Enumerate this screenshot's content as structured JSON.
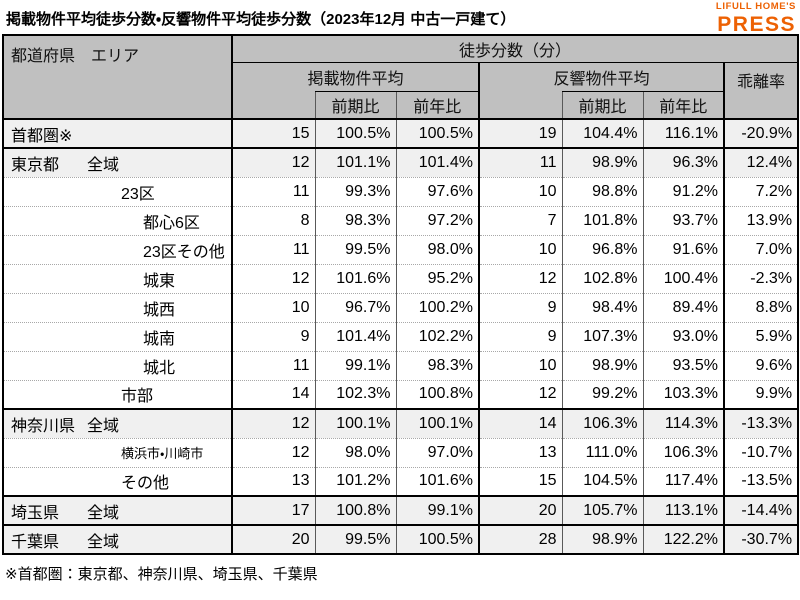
{
  "title": "掲載物件平均徒歩分数・反響物件平均徒歩分数（2023年12月 中古一戸建て）",
  "logo": {
    "line1": "LIFULL HOME'S",
    "line2": "PRESS",
    "color": "#ed6103"
  },
  "table": {
    "corner_header": "都道府県　エリア",
    "top_header": "徒歩分数（分）",
    "group_listed": "掲載物件平均",
    "group_response": "反響物件平均",
    "group_divergence": "乖離率",
    "sub_prev_period": "前期比",
    "sub_prev_year": "前年比",
    "col_keys": [
      "listed-avg",
      "listed-prev-period",
      "listed-prev-year",
      "response-avg",
      "response-prev-period",
      "response-prev-year",
      "divergence-rate"
    ]
  },
  "colors": {
    "header_bg": "#c0c0c0",
    "shade_row_bg": "#f0f0f0",
    "border": "#000000",
    "logo_orange": "#ed6103"
  },
  "chart_data": {
    "type": "table",
    "title": "掲載物件平均徒歩分数・反響物件平均徒歩分数（2023年12月 中古一戸建て）",
    "columns": [
      "都道府県 エリア",
      "掲載物件平均 徒歩分数（分）",
      "掲載 前期比",
      "掲載 前年比",
      "反響物件平均 徒歩分数（分）",
      "反響 前期比",
      "反響 前年比",
      "乖離率"
    ],
    "rows": [
      {
        "pref": "首都圏※",
        "area": "",
        "indent": 0,
        "shade": true,
        "group_start": false,
        "small": false,
        "values": [
          "15",
          "100.5%",
          "100.5%",
          "19",
          "104.4%",
          "116.1%",
          "-20.9%"
        ]
      },
      {
        "pref": "東京都",
        "area": "全域",
        "indent": 1,
        "shade": true,
        "group_start": true,
        "small": false,
        "values": [
          "12",
          "101.1%",
          "101.4%",
          "11",
          "98.9%",
          "96.3%",
          "12.4%"
        ]
      },
      {
        "pref": "",
        "area": "23区",
        "indent": 2,
        "shade": false,
        "group_start": false,
        "small": false,
        "values": [
          "11",
          "99.3%",
          "97.6%",
          "10",
          "98.8%",
          "91.2%",
          "7.2%"
        ]
      },
      {
        "pref": "",
        "area": "都心6区",
        "indent": 3,
        "shade": false,
        "group_start": false,
        "small": false,
        "values": [
          "8",
          "98.3%",
          "97.2%",
          "7",
          "101.8%",
          "93.7%",
          "13.9%"
        ]
      },
      {
        "pref": "",
        "area": "23区その他",
        "indent": 3,
        "shade": false,
        "group_start": false,
        "small": false,
        "values": [
          "11",
          "99.5%",
          "98.0%",
          "10",
          "96.8%",
          "91.6%",
          "7.0%"
        ]
      },
      {
        "pref": "",
        "area": "城東",
        "indent": 3,
        "shade": false,
        "group_start": false,
        "small": false,
        "values": [
          "12",
          "101.6%",
          "95.2%",
          "12",
          "102.8%",
          "100.4%",
          "-2.3%"
        ]
      },
      {
        "pref": "",
        "area": "城西",
        "indent": 3,
        "shade": false,
        "group_start": false,
        "small": false,
        "values": [
          "10",
          "96.7%",
          "100.2%",
          "9",
          "98.4%",
          "89.4%",
          "8.8%"
        ]
      },
      {
        "pref": "",
        "area": "城南",
        "indent": 3,
        "shade": false,
        "group_start": false,
        "small": false,
        "values": [
          "9",
          "101.4%",
          "102.2%",
          "9",
          "107.3%",
          "93.0%",
          "5.9%"
        ]
      },
      {
        "pref": "",
        "area": "城北",
        "indent": 3,
        "shade": false,
        "group_start": false,
        "small": false,
        "values": [
          "11",
          "99.1%",
          "98.3%",
          "10",
          "98.9%",
          "93.5%",
          "9.6%"
        ]
      },
      {
        "pref": "",
        "area": "市部",
        "indent": 2,
        "shade": false,
        "group_start": false,
        "small": false,
        "values": [
          "14",
          "102.3%",
          "100.8%",
          "12",
          "99.2%",
          "103.3%",
          "9.9%"
        ]
      },
      {
        "pref": "神奈川県",
        "area": "全域",
        "indent": 1,
        "shade": true,
        "group_start": true,
        "small": false,
        "values": [
          "12",
          "100.1%",
          "100.1%",
          "14",
          "106.3%",
          "114.3%",
          "-13.3%"
        ]
      },
      {
        "pref": "",
        "area": "横浜市・川崎市",
        "indent": 2,
        "shade": false,
        "group_start": false,
        "small": true,
        "values": [
          "12",
          "98.0%",
          "97.0%",
          "13",
          "111.0%",
          "106.3%",
          "-10.7%"
        ]
      },
      {
        "pref": "",
        "area": "その他",
        "indent": 2,
        "shade": false,
        "group_start": false,
        "small": false,
        "values": [
          "13",
          "101.2%",
          "101.6%",
          "15",
          "104.5%",
          "117.4%",
          "-13.5%"
        ]
      },
      {
        "pref": "埼玉県",
        "area": "全域",
        "indent": 1,
        "shade": true,
        "group_start": true,
        "small": false,
        "values": [
          "17",
          "100.8%",
          "99.1%",
          "20",
          "105.7%",
          "113.1%",
          "-14.4%"
        ]
      },
      {
        "pref": "千葉県",
        "area": "全域",
        "indent": 1,
        "shade": true,
        "group_start": true,
        "small": false,
        "values": [
          "20",
          "99.5%",
          "100.5%",
          "28",
          "98.9%",
          "122.2%",
          "-30.7%"
        ]
      }
    ],
    "footnote": "※首都圏：東京都、神奈川県、埼玉県、千葉県",
    "layout": {
      "grid": true,
      "shaded_rows": "prefecture totals",
      "value_columns": 7
    }
  }
}
